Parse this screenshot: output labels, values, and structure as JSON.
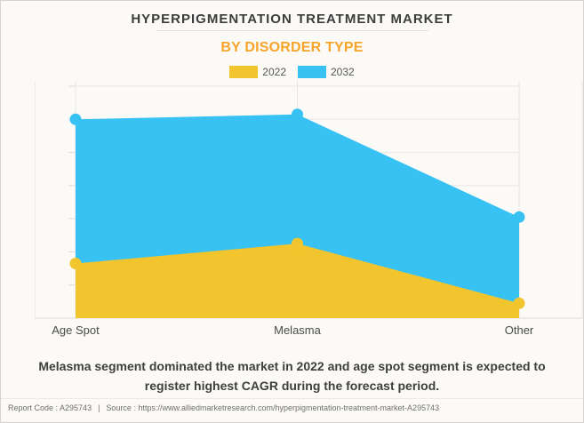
{
  "chart_data": {
    "type": "area",
    "stacking": "overlap",
    "title": "HYPERPIGMENTATION TREATMENT MARKET",
    "subtitle": "BY DISORDER TYPE",
    "categories": [
      "Age Spot",
      "Melasma",
      "Other"
    ],
    "series": [
      {
        "name": "2022",
        "color": "#f2c42d",
        "values": [
          1.65,
          2.25,
          0.45
        ]
      },
      {
        "name": "2032",
        "color": "#38c2f4",
        "values": [
          6.0,
          6.15,
          3.05
        ]
      }
    ],
    "ylim": [
      0,
      7
    ],
    "units": "relative gridline units (y-axis has no numeric labels in image)",
    "grid": true,
    "legend_position": "top",
    "xlabel": "",
    "ylabel": ""
  },
  "caption": {
    "lines": [
      "Melasma segment dominated the market in 2022 and age spot segment is expected to",
      "register highest CAGR during the forecast period."
    ]
  },
  "footer": {
    "report_code": "Report Code : A295743",
    "separator": "|",
    "source": "Source : https://www.alliedmarketresearch.com/hyperpigmentation-treatment-market-A295743"
  },
  "colors": {
    "background": "#fcfaf7",
    "subtitle_orange": "#f7a42b",
    "grid": "#e8e6e3",
    "axis": "#dedcda",
    "label_text": "#4a4a4a"
  }
}
